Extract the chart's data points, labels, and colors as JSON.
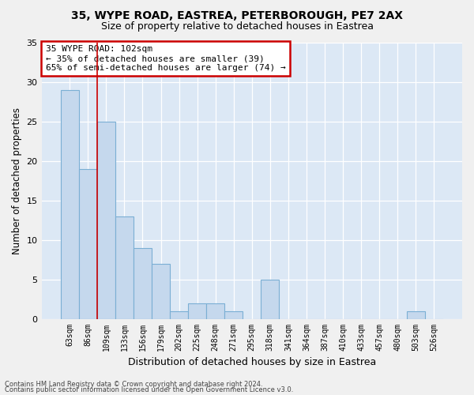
{
  "title1": "35, WYPE ROAD, EASTREA, PETERBOROUGH, PE7 2AX",
  "title2": "Size of property relative to detached houses in Eastrea",
  "xlabel": "Distribution of detached houses by size in Eastrea",
  "ylabel": "Number of detached properties",
  "categories": [
    "63sqm",
    "86sqm",
    "109sqm",
    "133sqm",
    "156sqm",
    "179sqm",
    "202sqm",
    "225sqm",
    "248sqm",
    "271sqm",
    "295sqm",
    "318sqm",
    "341sqm",
    "364sqm",
    "387sqm",
    "410sqm",
    "433sqm",
    "457sqm",
    "480sqm",
    "503sqm",
    "526sqm"
  ],
  "values": [
    29,
    19,
    25,
    13,
    9,
    7,
    1,
    2,
    2,
    1,
    0,
    5,
    0,
    0,
    0,
    0,
    0,
    0,
    0,
    1,
    0
  ],
  "bar_color": "#c5d8ed",
  "bar_edge_color": "#7bafd4",
  "red_line_x": 1.5,
  "annotation_text": "35 WYPE ROAD: 102sqm\n← 35% of detached houses are smaller (39)\n65% of semi-detached houses are larger (74) →",
  "annotation_box_color": "#ffffff",
  "annotation_box_edge": "#cc0000",
  "background_color": "#dce8f5",
  "grid_color": "#ffffff",
  "footer1": "Contains HM Land Registry data © Crown copyright and database right 2024.",
  "footer2": "Contains public sector information licensed under the Open Government Licence v3.0.",
  "ylim": [
    0,
    35
  ],
  "yticks": [
    0,
    5,
    10,
    15,
    20,
    25,
    30,
    35
  ],
  "fig_bg": "#f0f0f0"
}
